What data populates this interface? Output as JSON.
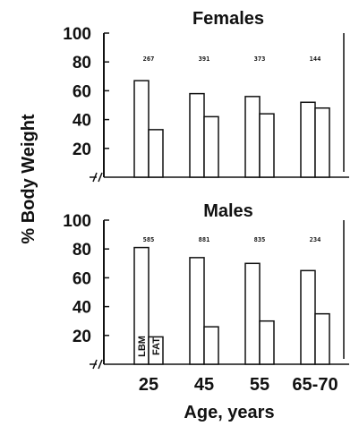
{
  "chart_data": [
    {
      "type": "bar",
      "title": "Females",
      "categories": [
        "25",
        "45",
        "55",
        "65-70"
      ],
      "series": [
        {
          "name": "LBM",
          "values": [
            67,
            58,
            56,
            52
          ]
        },
        {
          "name": "FAT",
          "values": [
            33,
            42,
            44,
            48
          ]
        }
      ],
      "counts": [
        "267",
        "391",
        "373",
        "144"
      ],
      "yticks": [
        20,
        40,
        60,
        80,
        100
      ],
      "ylim": [
        0,
        100
      ],
      "grid": false
    },
    {
      "type": "bar",
      "title": "Males",
      "categories": [
        "25",
        "45",
        "55",
        "65-70"
      ],
      "series": [
        {
          "name": "LBM",
          "values": [
            81,
            74,
            70,
            65
          ]
        },
        {
          "name": "FAT",
          "values": [
            19,
            26,
            30,
            35
          ]
        }
      ],
      "counts": [
        "585",
        "881",
        "835",
        "234"
      ],
      "yticks": [
        20,
        40,
        60,
        80,
        100
      ],
      "ylim": [
        0,
        100
      ],
      "grid": false
    }
  ],
  "ylabel": "% Body Weight",
  "xlabel": "Age, years",
  "xtick_labels": [
    "25",
    "45",
    "55",
    "65-70"
  ],
  "bar_labels": [
    "LBM",
    "FAT"
  ],
  "colors": {
    "ink": "#111111",
    "bar_fill": "#ffffff",
    "background": "#ffffff"
  }
}
